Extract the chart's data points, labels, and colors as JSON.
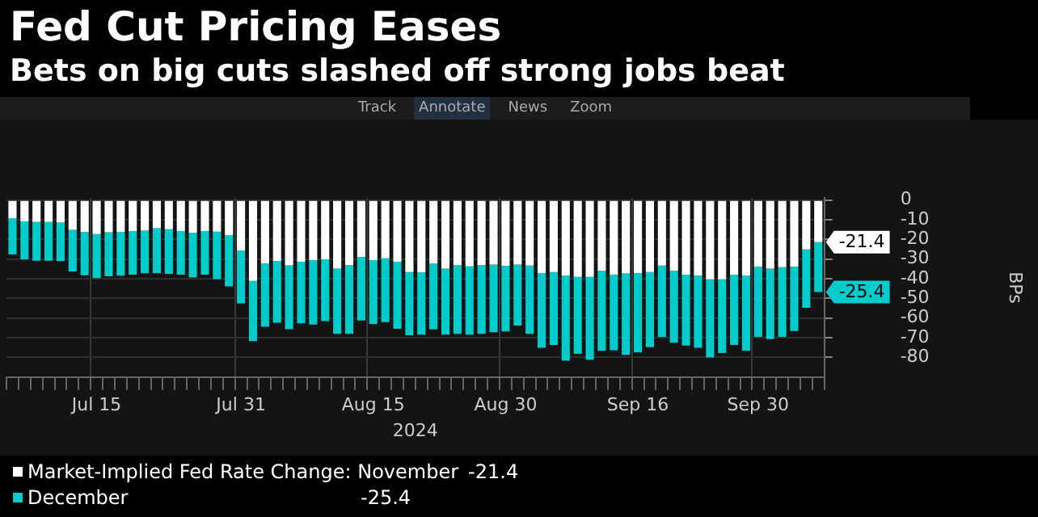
{
  "chart_data": {
    "type": "bar",
    "title": "Fed Cut Pricing Eases",
    "subtitle": "Bets on big cuts slashed off strong jobs beat",
    "annotations": [
      "Track",
      "Annotate",
      "News",
      "Zoom"
    ],
    "xlabel": "2024",
    "ylabel": "BPs",
    "categories": [
      null,
      null,
      null,
      null,
      null,
      null,
      null,
      "Jul 15",
      null,
      null,
      null,
      null,
      null,
      null,
      null,
      null,
      null,
      null,
      null,
      "Jul 31",
      null,
      null,
      null,
      null,
      null,
      null,
      null,
      null,
      null,
      null,
      "Aug 15",
      null,
      null,
      null,
      null,
      null,
      null,
      null,
      null,
      null,
      null,
      "Aug 30",
      null,
      null,
      null,
      null,
      null,
      null,
      null,
      null,
      null,
      null,
      "Sep 16",
      null,
      null,
      null,
      null,
      null,
      null,
      null,
      null,
      null,
      "Sep 30",
      null,
      null,
      null,
      null,
      null
    ],
    "stacked": true,
    "series": [
      {
        "name": "Market-Implied Fed Rate Change: November",
        "color": "#ffffff",
        "values": [
          -9.3,
          -10.8,
          -11.1,
          -11.1,
          -11.4,
          -15.1,
          -16.3,
          -17.3,
          -16.4,
          -16.3,
          -15.8,
          -15.5,
          -14.3,
          -14.8,
          -15.8,
          -16.7,
          -15.8,
          -16.1,
          -17.8,
          -25.6,
          -41.1,
          -32.3,
          -31.0,
          -33.2,
          -31.4,
          -30.5,
          -30.1,
          -34.9,
          -33.1,
          -29.0,
          -30.5,
          -29.6,
          -31.4,
          -36.6,
          -36.7,
          -32.3,
          -34.9,
          -33.1,
          -33.7,
          -33.1,
          -32.8,
          -33.4,
          -32.8,
          -33.3,
          -37.2,
          -36.6,
          -38.4,
          -39.1,
          -39.1,
          -36.0,
          -37.9,
          -37.3,
          -37.2,
          -36.6,
          -33.3,
          -36.0,
          -37.9,
          -38.4,
          -40.3,
          -40.3,
          -37.9,
          -38.4,
          -33.8,
          -34.9,
          -34.1,
          -33.8,
          -25.1,
          -21.4
        ],
        "value_labels": [
          null,
          null,
          null,
          null,
          null,
          null,
          null,
          null,
          null,
          null,
          null,
          null,
          null,
          null,
          null,
          null,
          null,
          null,
          null,
          null,
          null,
          null,
          null,
          null,
          null,
          null,
          null,
          null,
          null,
          null,
          null,
          null,
          null,
          null,
          null,
          null,
          null,
          null,
          null,
          null,
          null,
          null,
          null,
          null,
          null,
          null,
          null,
          null,
          null,
          null,
          null,
          null,
          null,
          null,
          null,
          null,
          null,
          null,
          null,
          null,
          null,
          null,
          null,
          null,
          null,
          null,
          null,
          "-21.4"
        ]
      },
      {
        "name": "December",
        "color": "#00cccc",
        "values": [
          -18.4,
          -19.3,
          -19.7,
          -19.7,
          -19.6,
          -21.2,
          -21.9,
          -22.4,
          -22.3,
          -22.1,
          -22.1,
          -21.7,
          -22.9,
          -22.7,
          -22.1,
          -22.7,
          -22.1,
          -24.1,
          -26.1,
          -26.9,
          -30.6,
          -32.1,
          -31.4,
          -32.4,
          -31.3,
          -32.8,
          -31.4,
          -33.1,
          -34.9,
          -32.2,
          -32.5,
          -32.5,
          -34.0,
          -32.1,
          -31.7,
          -33.4,
          -33.5,
          -34.9,
          -34.7,
          -34.9,
          -34.4,
          -33.4,
          -31.0,
          -34.7,
          -37.9,
          -37.1,
          -43.3,
          -39.1,
          -42.1,
          -40.6,
          -38.4,
          -41.4,
          -40.3,
          -38.2,
          -36.3,
          -36.5,
          -36.1,
          -36.7,
          -39.7,
          -37.5,
          -35.8,
          -38.2,
          -35.8,
          -35.8,
          -35.5,
          -32.8,
          -29.7,
          -25.4
        ],
        "value_labels": [
          null,
          null,
          null,
          null,
          null,
          null,
          null,
          null,
          null,
          null,
          null,
          null,
          null,
          null,
          null,
          null,
          null,
          null,
          null,
          null,
          null,
          null,
          null,
          null,
          null,
          null,
          null,
          null,
          null,
          null,
          null,
          null,
          null,
          null,
          null,
          null,
          null,
          null,
          null,
          null,
          null,
          null,
          null,
          null,
          null,
          null,
          null,
          null,
          null,
          null,
          null,
          null,
          null,
          null,
          null,
          null,
          null,
          null,
          null,
          null,
          null,
          null,
          null,
          null,
          null,
          null,
          null,
          "-25.4"
        ]
      }
    ],
    "ylim": [
      -90,
      1
    ],
    "yticks": [
      0,
      -10,
      -20,
      -30,
      -40,
      -50,
      -60,
      -70,
      -80
    ],
    "grid": true,
    "legend": "bottom left"
  }
}
